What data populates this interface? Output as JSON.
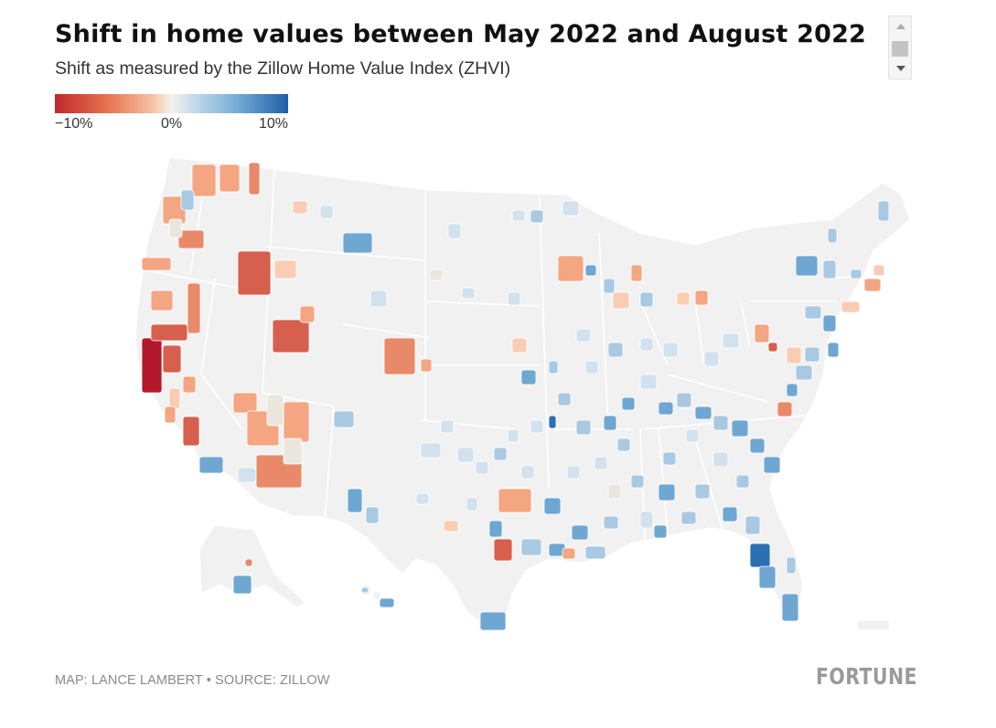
{
  "header": {
    "title": "Shift in home values between May 2022 and August 2022",
    "subtitle": "Shift as measured by the Zillow Home Value Index (ZHVI)"
  },
  "legend": {
    "labels": [
      "−10%",
      "0%",
      "10%"
    ],
    "scale_min": -10,
    "scale_max": 10,
    "colors": [
      "#c1272d",
      "#e5714f",
      "#f6c3a5",
      "#f4f1ec",
      "#c2d9ea",
      "#77acd6",
      "#1f5fa6"
    ]
  },
  "map": {
    "base_fill": "#f1f1f1",
    "border_color": "#ffffff"
  },
  "footer": {
    "credit": "MAP: LANCE LAMBERT • SOURCE: ZILLOW",
    "logo": "FORTUNE"
  }
}
